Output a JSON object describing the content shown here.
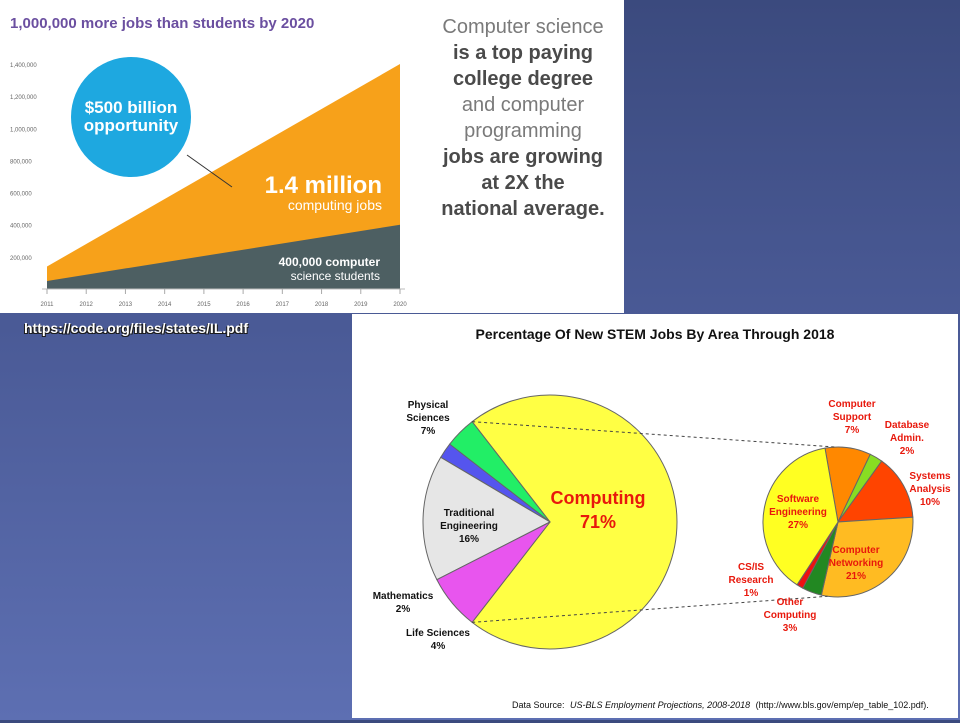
{
  "colors": {
    "slide_bg_top": "#3b4a7e",
    "slide_bg_bottom": "#5d6fb2",
    "purple_title": "#6b4fa0",
    "orange_area": "#f7a11a",
    "grey_area": "#4d5f62",
    "blue_circle": "#1ea8e0",
    "text_grey": "#7a7a7a",
    "text_dark": "#4a4a4a",
    "computing_yellow": "#ffff44",
    "computing_red": "#e8180c"
  },
  "infographic": {
    "title": "1,000,000 more jobs than students by 2020",
    "circle_line1": "$500 billion",
    "circle_line2": "opportunity",
    "big_number": "1.4 million",
    "big_number_sub": "computing jobs",
    "students_line1": "400,000 computer",
    "students_line2": "science students",
    "side_text": [
      {
        "text": "Computer science",
        "bold": false
      },
      {
        "text": "is a top paying",
        "bold": true
      },
      {
        "text": "college degree",
        "bold": true
      },
      {
        "text": "and computer",
        "bold": false
      },
      {
        "text": "programming",
        "bold": false
      },
      {
        "text": "jobs are growing",
        "bold": true
      },
      {
        "text": "at 2X the",
        "bold": true
      },
      {
        "text": "national average.",
        "bold": true
      }
    ]
  },
  "source_link": "https://code.org/files/states/IL.pdf",
  "chart_data": [
    {
      "type": "area",
      "title": "1,000,000 more jobs than students by 2020",
      "x": [
        "2011",
        "2012",
        "2013",
        "2014",
        "2015",
        "2016",
        "2017",
        "2018",
        "2019",
        "2020"
      ],
      "ylim": [
        0,
        1400000
      ],
      "yticks": [
        {
          "value": 200000,
          "label": "200,000"
        },
        {
          "value": 400000,
          "label": "400,000"
        },
        {
          "value": 600000,
          "label": "600,000"
        },
        {
          "value": 800000,
          "label": "800,000"
        },
        {
          "value": 1000000,
          "label": "1,000,000"
        },
        {
          "value": 1200000,
          "label": "1,200,000"
        },
        {
          "value": 1400000,
          "label": "1,400,000"
        }
      ],
      "series": [
        {
          "name": "computing jobs",
          "color": "#f7a11a",
          "start": 140000,
          "end": 1400000
        },
        {
          "name": "computer science students",
          "color": "#4d5f62",
          "start": 50000,
          "end": 400000
        }
      ],
      "grid": false
    },
    {
      "type": "pie",
      "title": "Percentage Of New STEM Jobs By Area Through 2018",
      "slices": [
        {
          "label": "Computing",
          "value": 71,
          "display": "71%",
          "color": "#ffff44"
        },
        {
          "label": "Life Sciences",
          "value": 4,
          "display": "4%",
          "color": "#22ee66"
        },
        {
          "label": "Mathematics",
          "value": 2,
          "display": "2%",
          "color": "#5555ee"
        },
        {
          "label": "Traditional Engineering",
          "value": 16,
          "display": "16%",
          "color": "#e6e6e6"
        },
        {
          "label": "Physical Sciences",
          "value": 7,
          "display": "7%",
          "color": "#e855ee"
        }
      ],
      "breakdown": {
        "of": "Computing",
        "slices": [
          {
            "label": "Computer Support",
            "value": 7,
            "display": "7%",
            "color": "#ff8800"
          },
          {
            "label": "Database Admin.",
            "value": 2,
            "display": "2%",
            "color": "#88dd22"
          },
          {
            "label": "Systems Analysis",
            "value": 10,
            "display": "10%",
            "color": "#ff4400"
          },
          {
            "label": "Computer Networking",
            "value": 21,
            "display": "21%",
            "color": "#ffbb22"
          },
          {
            "label": "Other Computing",
            "value": 3,
            "display": "3%",
            "color": "#228822"
          },
          {
            "label": "CS/IS Research",
            "value": 1,
            "display": "1%",
            "color": "#ee1111"
          },
          {
            "label": "Software Engineering",
            "value": 27,
            "display": "27%",
            "color": "#ffff22"
          }
        ]
      },
      "source_prefix": "Data Source:",
      "source_italic": "US-BLS Employment Projections, 2008-2018",
      "source_suffix": "(http://www.bls.gov/emp/ep_table_102.pdf)."
    }
  ]
}
